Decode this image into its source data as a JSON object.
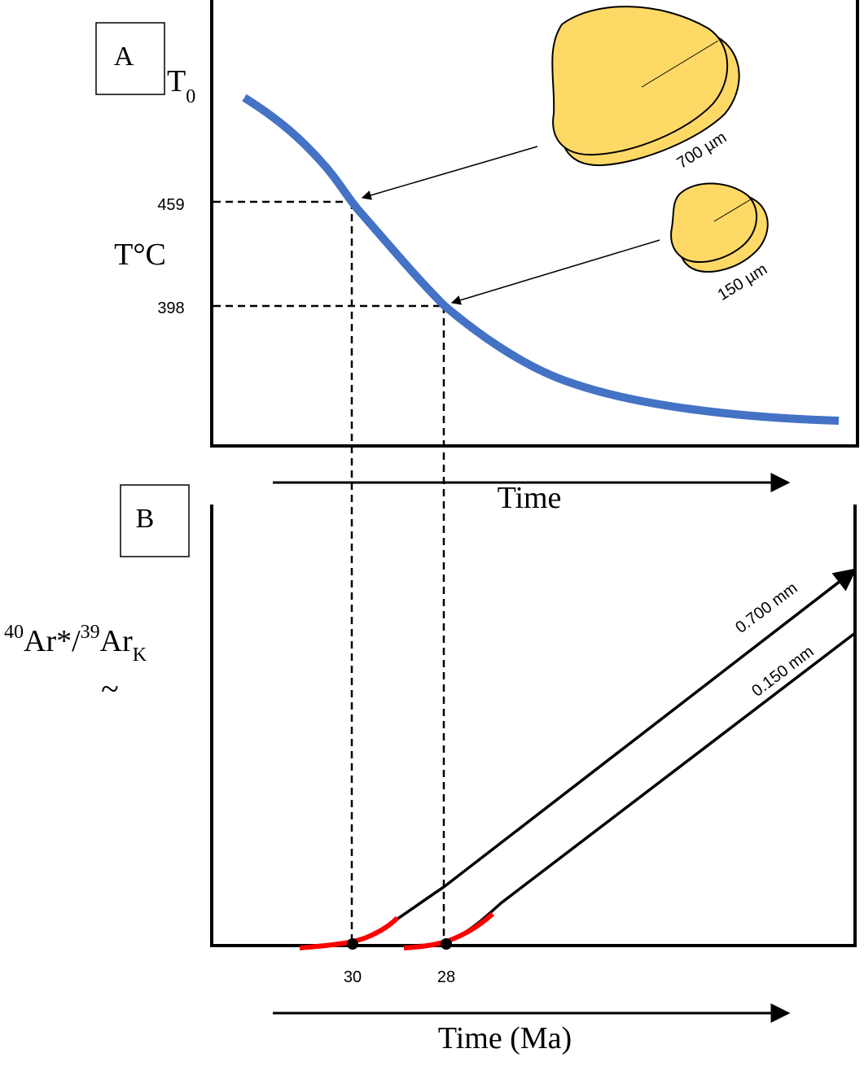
{
  "panel_a": {
    "label": "A",
    "t0": {
      "main": "T",
      "sub": "0"
    },
    "y_label": "T°C",
    "tick_high": "459",
    "tick_low": "398",
    "grain_large": "700 µm",
    "grain_small": "150 µm",
    "x_label": "Time"
  },
  "panel_b": {
    "label": "B",
    "tilde": "~",
    "y_label": {
      "sup1": "40",
      "part1": "Ar*/",
      "sup2": "39",
      "part2": "Ar",
      "sub": "K"
    },
    "curve_large": "0.700 mm",
    "curve_small": "0.150 mm",
    "age_large": "30",
    "age_small": "28",
    "x_label": "Time (Ma)"
  }
}
